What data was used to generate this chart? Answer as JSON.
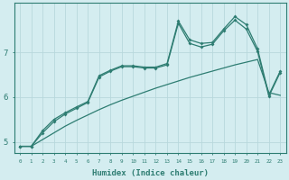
{
  "xlabel": "Humidex (Indice chaleur)",
  "bg_color": "#d4edf0",
  "grid_color": "#b8d8dc",
  "line_color": "#2e7d72",
  "xlim": [
    -0.5,
    23.5
  ],
  "ylim": [
    4.75,
    8.1
  ],
  "yticks": [
    5,
    6,
    7
  ],
  "xticks": [
    0,
    1,
    2,
    3,
    4,
    5,
    6,
    7,
    8,
    9,
    10,
    11,
    12,
    13,
    14,
    15,
    16,
    17,
    18,
    19,
    20,
    21,
    22,
    23
  ],
  "line1_x": [
    0,
    1,
    2,
    3,
    4,
    5,
    6,
    7,
    8,
    9,
    10,
    11,
    12,
    13,
    14,
    15,
    16,
    17,
    18,
    19,
    20,
    21,
    22,
    23
  ],
  "line1_y": [
    4.9,
    4.9,
    5.05,
    5.2,
    5.35,
    5.48,
    5.6,
    5.72,
    5.83,
    5.93,
    6.02,
    6.11,
    6.2,
    6.28,
    6.36,
    6.44,
    6.51,
    6.58,
    6.65,
    6.72,
    6.78,
    6.84,
    6.1,
    6.04
  ],
  "line2_x": [
    0,
    1,
    2,
    3,
    4,
    5,
    6,
    7,
    8,
    9,
    10,
    11,
    12,
    13,
    14,
    15,
    16,
    17,
    18,
    19,
    20,
    21,
    22,
    23
  ],
  "line2_y": [
    4.9,
    4.9,
    5.2,
    5.45,
    5.62,
    5.75,
    5.88,
    6.45,
    6.58,
    6.68,
    6.68,
    6.65,
    6.65,
    6.72,
    7.65,
    7.2,
    7.12,
    7.18,
    7.48,
    7.72,
    7.52,
    7.02,
    6.02,
    6.55
  ],
  "line3_x": [
    0,
    1,
    2,
    3,
    4,
    5,
    6,
    7,
    8,
    9,
    10,
    11,
    12,
    13,
    14,
    15,
    16,
    17,
    18,
    19,
    20,
    21,
    22,
    23
  ],
  "line3_y": [
    4.9,
    4.9,
    5.25,
    5.5,
    5.65,
    5.78,
    5.9,
    6.48,
    6.6,
    6.7,
    6.7,
    6.67,
    6.67,
    6.75,
    7.7,
    7.28,
    7.2,
    7.22,
    7.52,
    7.8,
    7.62,
    7.08,
    6.05,
    6.58
  ]
}
